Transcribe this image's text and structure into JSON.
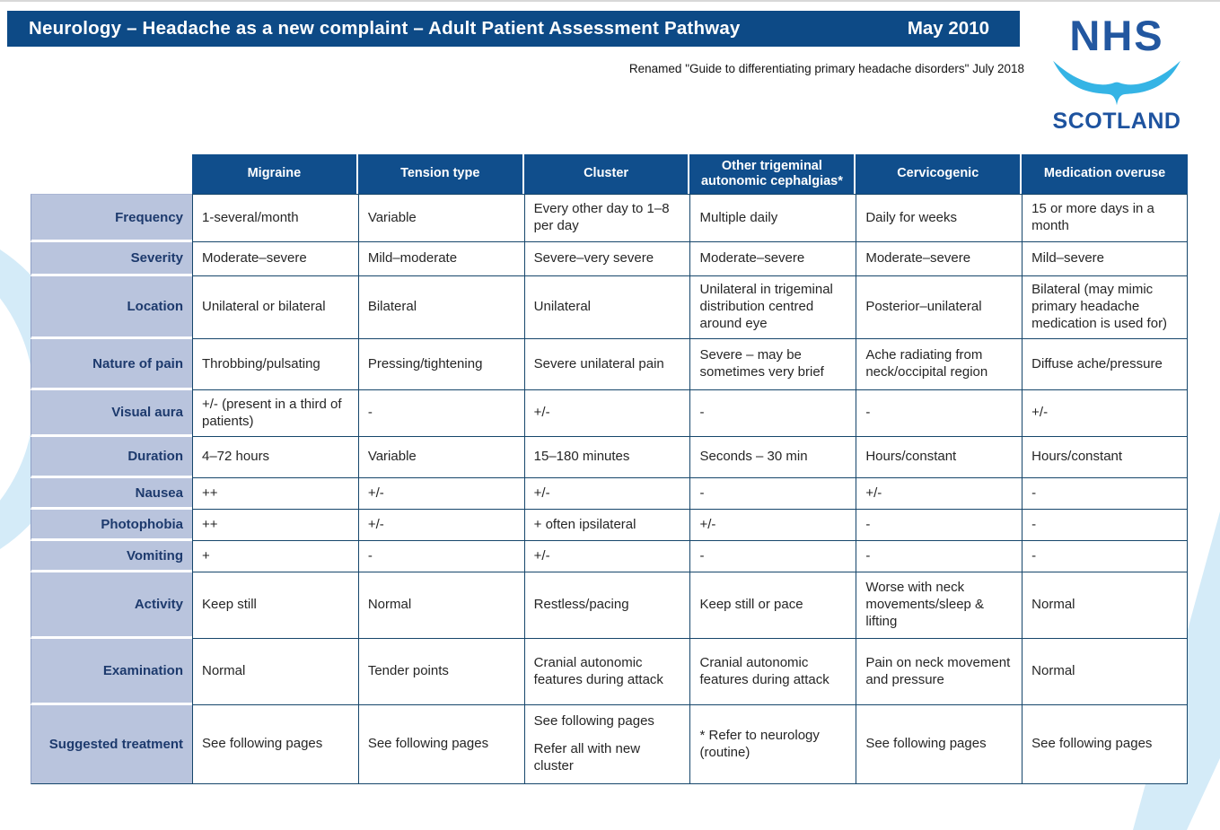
{
  "banner": {
    "title": "Neurology – Headache as a new complaint – Adult Patient Assessment Pathway",
    "date": "May 2010"
  },
  "subtitle": "Renamed \"Guide to differentiating primary headache disorders\" July 2018",
  "logo": {
    "line1": "NHS",
    "line2": "SCOTLAND"
  },
  "colors": {
    "banner_blue": "#0d4a86",
    "header_blue": "#104e8c",
    "label_lavender": "#b9c4dd",
    "grid_navy": "#16466b",
    "logo_dark_blue": "#2257a0",
    "logo_light_blue": "#35b4e5",
    "decoration_light_blue": "#d4ebf8"
  },
  "table": {
    "columns": [
      "Migraine",
      "Tension type",
      "Cluster",
      "Other trigeminal autonomic cephalgias*",
      "Cervicogenic",
      "Medication overuse"
    ],
    "rows": [
      {
        "label": "Frequency",
        "cells": [
          "1-several/month",
          "Variable",
          "Every other day to 1–8 per day",
          "Multiple daily",
          "Daily for weeks",
          "15 or more days in a month"
        ]
      },
      {
        "label": "Severity",
        "cells": [
          "Moderate–severe",
          "Mild–moderate",
          "Severe–very severe",
          "Moderate–severe",
          "Moderate–severe",
          "Mild–severe"
        ]
      },
      {
        "label": "Location",
        "cells": [
          "Unilateral or bilateral",
          "Bilateral",
          "Unilateral",
          "Unilateral in trigeminal distribution centred around eye",
          "Posterior–unilateral",
          "Bilateral (may mimic primary headache medication is used for)"
        ]
      },
      {
        "label": "Nature of pain",
        "cells": [
          "Throbbing/pulsating",
          "Pressing/tightening",
          "Severe unilateral pain",
          "Severe – may be sometimes very brief",
          "Ache radiating from neck/occipital region",
          "Diffuse ache/pressure"
        ]
      },
      {
        "label": "Visual aura",
        "cells": [
          "+/- (present in a third of patients)",
          "-",
          "+/-",
          "-",
          "-",
          "+/-"
        ]
      },
      {
        "label": "Duration",
        "cells": [
          "4–72 hours",
          "Variable",
          "15–180 minutes",
          "Seconds – 30 min",
          "Hours/constant",
          "Hours/constant"
        ]
      },
      {
        "label": "Nausea",
        "cells": [
          "++",
          "+/-",
          "+/-",
          "-",
          "+/-",
          "-"
        ]
      },
      {
        "label": "Photophobia",
        "cells": [
          "++",
          "+/-",
          "+ often ipsilateral",
          "+/-",
          "-",
          "-"
        ]
      },
      {
        "label": "Vomiting",
        "cells": [
          "+",
          "-",
          "+/-",
          "-",
          "-",
          "-"
        ]
      },
      {
        "label": "Activity",
        "cells": [
          "Keep still",
          "Normal",
          "Restless/pacing",
          "Keep still or pace",
          "Worse with neck movements/sleep & lifting",
          "Normal"
        ]
      },
      {
        "label": "Examination",
        "cells": [
          "Normal",
          "Tender points",
          "Cranial autonomic features during attack",
          "Cranial autonomic features during attack",
          "Pain on neck movement and pressure",
          "Normal"
        ]
      },
      {
        "label": "Suggested treatment",
        "cells": [
          "See following pages",
          "See following pages",
          "See following pages\nRefer all with new cluster",
          "* Refer to neurology (routine)",
          "See following pages",
          "See following pages"
        ]
      }
    ]
  }
}
